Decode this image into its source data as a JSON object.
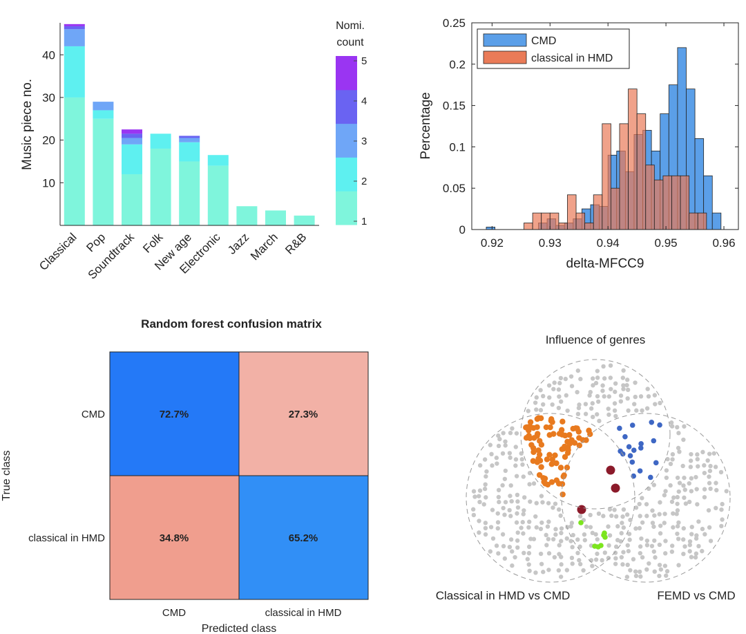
{
  "chart_data": [
    {
      "type": "bar",
      "subtype": "stacked",
      "categories": [
        "Classical",
        "Pop",
        "Soundtrack",
        "Folk",
        "New age",
        "Electronic",
        "Jazz",
        "March",
        "R&B"
      ],
      "series": [
        {
          "name": "1",
          "values": [
            30,
            25,
            12,
            18,
            15,
            14,
            4.5,
            3.5,
            2.3
          ]
        },
        {
          "name": "2",
          "values": [
            12,
            2,
            7,
            3.5,
            4.5,
            2.5,
            0,
            0,
            0
          ]
        },
        {
          "name": "3",
          "values": [
            4,
            2,
            1.5,
            0,
            1,
            0,
            0,
            0,
            0
          ]
        },
        {
          "name": "4",
          "values": [
            0.7,
            0,
            1,
            0,
            0.5,
            0,
            0,
            0,
            0
          ]
        },
        {
          "name": "5",
          "values": [
            0.5,
            0,
            1,
            0,
            0,
            0,
            0,
            0,
            0
          ]
        }
      ],
      "title": "",
      "xlabel": "",
      "ylabel": "Music piece no.",
      "ylim": [
        0,
        47.5
      ],
      "yticks": [
        "10",
        "20",
        "30",
        "40"
      ],
      "colorbar": {
        "title_line1": "Nomi.",
        "title_line2": "count",
        "ticks": [
          "1",
          "2",
          "3",
          "4",
          "5"
        ],
        "colors": [
          "#7ff5dc",
          "#5ef0f0",
          "#6fa6f7",
          "#6a63f2",
          "#9a35f2"
        ]
      }
    },
    {
      "type": "histogram",
      "xlabel": "delta-MFCC9",
      "ylabel": "Percentage",
      "xlim": [
        0.9165,
        0.9625
      ],
      "ylim": [
        0,
        0.25
      ],
      "xticks": [
        "0.92",
        "0.93",
        "0.94",
        "0.95",
        "0.96"
      ],
      "yticks": [
        "0",
        "0.05",
        "0.1",
        "0.15",
        "0.2",
        "0.25"
      ],
      "bin_width": 0.0015,
      "legend": {
        "position": "top-left",
        "entries": [
          "CMD",
          "classical in HMD"
        ]
      },
      "series": [
        {
          "name": "CMD",
          "color": "#5b9fe8",
          "bin_start": 0.919,
          "values": [
            0.003,
            0,
            0,
            0,
            0,
            0,
            0.008,
            0.013,
            0.005,
            0.008,
            0.013,
            0.025,
            0.03,
            0.028,
            0.09,
            0.095,
            0.07,
            0.115,
            0.12,
            0.095,
            0.14,
            0.175,
            0.22,
            0.17,
            0.11,
            0.065,
            0.02
          ]
        },
        {
          "name": "classical in HMD",
          "color": "#ea7b58",
          "bin_start": 0.9255,
          "values": [
            0.008,
            0.02,
            0.02,
            0.02,
            0.008,
            0.042,
            0.02,
            0.008,
            0.042,
            0.128,
            0.05,
            0.128,
            0.17,
            0.14,
            0.078,
            0.06,
            0.065,
            0.065,
            0.065,
            0.02,
            0.02
          ]
        }
      ]
    },
    {
      "type": "heatmap",
      "title": "Random forest confusion matrix",
      "xlabel": "Predicted class",
      "ylabel": "True class",
      "row_labels": [
        "CMD",
        "classical in HMD"
      ],
      "col_labels": [
        "CMD",
        "classical in HMD"
      ],
      "cells": [
        [
          "72.7%",
          "27.3%"
        ],
        [
          "34.8%",
          "65.2%"
        ]
      ],
      "values": [
        [
          72.7,
          27.3
        ],
        [
          34.8,
          65.2
        ]
      ],
      "cell_colors": [
        [
          "#2479f7",
          "#f2b1a6"
        ],
        [
          "#f09e8e",
          "#318ff6"
        ]
      ],
      "text_colors": [
        [
          "#ffffff",
          "#111111"
        ],
        [
          "#111111",
          "#ffffff"
        ]
      ]
    },
    {
      "type": "venn",
      "title": "Influence of genres",
      "sets": [
        "Classical in HMD vs CMD",
        "FEMD vs CMD"
      ],
      "point_groups": [
        {
          "name": "orange",
          "color": "#e87a1f"
        },
        {
          "name": "blue",
          "color": "#3e67c4"
        },
        {
          "name": "dark-red",
          "color": "#8b1a2a"
        },
        {
          "name": "green",
          "color": "#7ce51e"
        },
        {
          "name": "gray",
          "color": "#c6c6c6"
        }
      ]
    }
  ]
}
